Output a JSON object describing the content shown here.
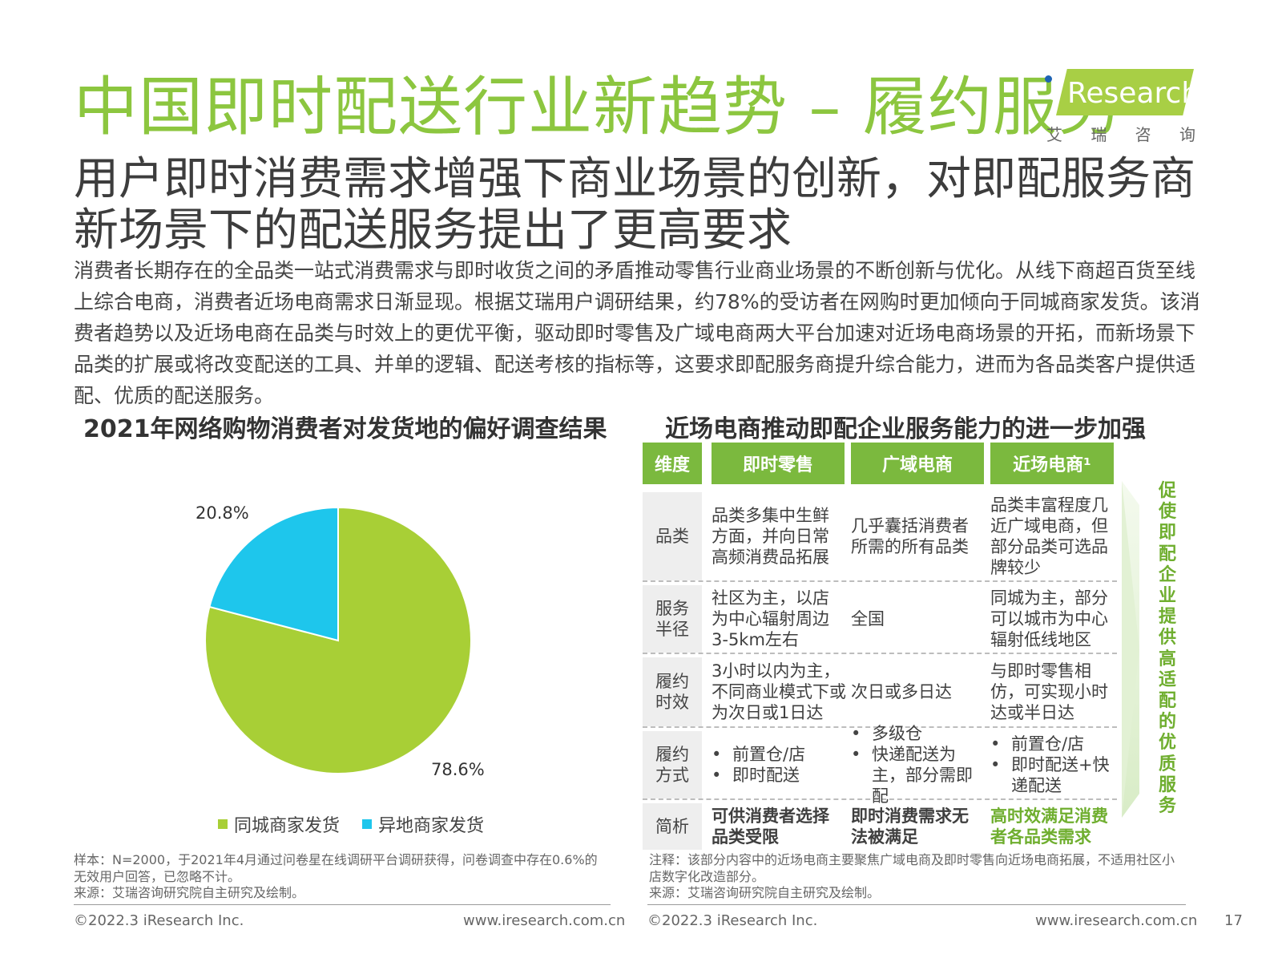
{
  "header": {
    "title": "中国即时配送行业新趋势 – 履约服务",
    "subtitle": "用户即时消费需求增强下商业场景的创新，对即配服务商新场景下的配送服务提出了更高要求",
    "intro": "消费者长期存在的全品类一站式消费需求与即时收货之间的矛盾推动零售行业商业场景的不断创新与优化。从线下商超百货至线上综合电商，消费者近场电商需求日渐显现。根据艾瑞用户调研结果，约78%的受访者在网购时更加倾向于同城商家发货。该消费者趋势以及近场电商在品类与时效上的更优平衡，驱动即时零售及广域电商两大平台加速对近场电商场景的开拓，而新场景下品类的扩展或将改变配送的工具、并单的逻辑、配送考核的指标等，这要求即配服务商提升综合能力，进而为各品类客户提供适配、优质的配送服务。"
  },
  "logo": {
    "text": "Research",
    "cn_chars": [
      "艾",
      "瑞",
      "咨",
      "询"
    ]
  },
  "chart_data": {
    "type": "pie",
    "title": "2021年网络购物消费者对发货地的偏好调查结果",
    "slices": [
      {
        "label": "同城商家发货",
        "value": 78.6,
        "display": "78.6%",
        "color": "#a8cf36"
      },
      {
        "label": "异地商家发货",
        "value": 20.8,
        "display": "20.8%",
        "color": "#1ec6ec"
      }
    ],
    "legend_position": "bottom"
  },
  "chart_notes": {
    "sample": "样本：N=2000，于2021年4月通过问卷星在线调研平台调研获得，问卷调查中存在0.6%的无效用户回答，已忽略不计。",
    "source": "来源：艾瑞咨询研究院自主研究及绘制。"
  },
  "table": {
    "title": "近场电商推动即配企业服务能力的进一步加强",
    "headers": [
      "维度",
      "即时零售",
      "广域电商",
      "近场电商¹"
    ],
    "rows": [
      {
        "dim": "品类",
        "c1": "品类多集中生鲜方面，并向日常高频消费品拓展",
        "c2": "几乎囊括消费者所需的所有品类",
        "c3": "品类丰富程度几近广域电商，但部分品类可选品牌较少"
      },
      {
        "dim": "服务半径",
        "c1": "社区为主，以店为中心辐射周边3-5km左右",
        "c2": "全国",
        "c3": "同城为主，部分可以城市为中心辐射低线地区"
      },
      {
        "dim": "履约时效",
        "c1": "3小时以内为主，不同商业模式下或为次日或1日达",
        "c2": "次日或多日达",
        "c3": "与即时零售相仿，可实现小时达或半日达"
      },
      {
        "dim": "履约方式",
        "c1_list": [
          "前置仓/店",
          "即时配送"
        ],
        "c2_list": [
          "多级仓",
          "快递配送为主，部分需即配"
        ],
        "c3_list": [
          "前置仓/店",
          "即时配送+快递配送"
        ]
      },
      {
        "dim": "简析",
        "c1": "可供消费者选择品类受限",
        "c2": "即时消费需求无法被满足",
        "c3": "高时效满足消费者各品类需求"
      }
    ],
    "arrow_text": "促使即配企业提供高适配的优质服务",
    "note": "注释：该部分内容中的近场电商主要聚焦广域电商及即时零售向近场电商拓展，不适用社区小店数字化改造部分。",
    "source": "来源：艾瑞咨询研究院自主研究及绘制。"
  },
  "footer": {
    "copyright": "©2022.3 iResearch Inc.",
    "url": "www.iresearch.com.cn",
    "page": "17"
  }
}
